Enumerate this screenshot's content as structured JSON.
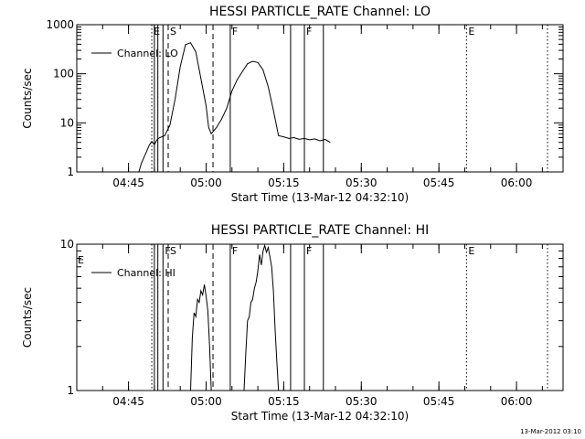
{
  "footer": {
    "timestamp": "13-Mar-2012 03:10"
  },
  "chart_data": [
    {
      "type": "line",
      "title": "HESSI PARTICLE_RATE Channel: LO",
      "xlabel": "Start Time (13-Mar-12 04:32:10)",
      "ylabel": "Counts/sec",
      "yscale": "log",
      "ylim": [
        1,
        1000
      ],
      "xlim": [
        "04:35",
        "06:09"
      ],
      "ytick_labels": [
        "1",
        "10",
        "100",
        "1000"
      ],
      "xtick_labels": [
        "04:45",
        "05:00",
        "05:15",
        "05:30",
        "05:45",
        "06:00"
      ],
      "legend": {
        "position": "top-left"
      },
      "series": [
        {
          "name": "Channel: LO",
          "x": [
            "04:47:00",
            "04:47:30",
            "04:48:00",
            "04:48:30",
            "04:49:00",
            "04:49:30",
            "04:50:00",
            "04:50:30",
            "04:51:00",
            "04:52:00",
            "04:53:00",
            "04:54:00",
            "04:55:00",
            "04:56:00",
            "04:57:00",
            "04:58:00",
            "04:59:00",
            "05:00:00",
            "05:00:30",
            "05:01:00",
            "05:02:00",
            "05:03:00",
            "05:04:00",
            "05:05:00",
            "05:06:00",
            "05:07:00",
            "05:08:00",
            "05:09:00",
            "05:10:00",
            "05:11:00",
            "05:12:00",
            "05:13:00",
            "05:14:00",
            "05:15:00",
            "05:16:00",
            "05:17:00",
            "05:18:00",
            "05:19:00",
            "05:20:00",
            "05:21:00",
            "05:22:00",
            "05:23:00",
            "05:24:00"
          ],
          "y": [
            1.0,
            1.5,
            2.0,
            2.6,
            3.5,
            4.2,
            3.6,
            4.5,
            5.0,
            5.5,
            9,
            30,
            140,
            390,
            430,
            280,
            80,
            22,
            8,
            6,
            8,
            12,
            20,
            45,
            75,
            110,
            160,
            180,
            170,
            120,
            55,
            18,
            5.5,
            5.2,
            4.8,
            5.0,
            4.6,
            4.8,
            4.5,
            4.7,
            4.3,
            4.6,
            4.0
          ]
        }
      ],
      "vertical_markers": [
        {
          "time": "04:49:30",
          "style": "dotted",
          "label": "E"
        },
        {
          "time": "04:50:00",
          "style": "solid",
          "label": ""
        },
        {
          "time": "04:50:40",
          "style": "solid",
          "label": ""
        },
        {
          "time": "04:51:40",
          "style": "solid",
          "label": ""
        },
        {
          "time": "04:52:40",
          "style": "dashed",
          "label": "S"
        },
        {
          "time": "05:01:20",
          "style": "dashed",
          "label": ""
        },
        {
          "time": "05:04:40",
          "style": "solid",
          "label": "F"
        },
        {
          "time": "05:16:20",
          "style": "solid",
          "label": ""
        },
        {
          "time": "05:19:00",
          "style": "solid",
          "label": "F"
        },
        {
          "time": "05:22:40",
          "style": "solid",
          "label": ""
        },
        {
          "time": "05:50:20",
          "style": "dotted",
          "label": "E"
        },
        {
          "time": "06:06:00",
          "style": "dotted",
          "label": ""
        }
      ]
    },
    {
      "type": "line",
      "title": "HESSI PARTICLE_RATE Channel: HI",
      "xlabel": "Start Time (13-Mar-12 04:32:10)",
      "ylabel": "Counts/sec",
      "yscale": "log",
      "ylim": [
        1,
        10
      ],
      "xlim": [
        "04:35",
        "06:09"
      ],
      "ytick_labels": [
        "1",
        "10"
      ],
      "xtick_labels": [
        "04:45",
        "05:00",
        "05:15",
        "05:30",
        "05:45",
        "06:00"
      ],
      "legend": {
        "position": "top-left"
      },
      "series": [
        {
          "name": "Channel: HI",
          "x": [
            "04:57:00",
            "04:57:20",
            "04:57:40",
            "04:58:00",
            "04:58:20",
            "04:58:40",
            "04:59:00",
            "04:59:20",
            "04:59:40",
            "05:00:00",
            "05:00:20",
            "05:00:40",
            "05:01:00"
          ],
          "y": [
            1.0,
            2.3,
            3.4,
            3.2,
            4.2,
            4.0,
            4.8,
            4.5,
            5.3,
            4.4,
            3.5,
            2.0,
            1.0
          ]
        },
        {
          "name": "",
          "x": [
            "05:07:20",
            "05:07:40",
            "05:08:00",
            "05:08:20",
            "05:08:40",
            "05:09:00",
            "05:09:20",
            "05:09:40",
            "05:10:00",
            "05:10:20",
            "05:10:40",
            "05:11:00",
            "05:11:20",
            "05:11:40",
            "05:12:00",
            "05:12:20",
            "05:12:40",
            "05:13:00",
            "05:13:20",
            "05:13:40",
            "05:14:00"
          ],
          "y": [
            1.0,
            1.8,
            3.0,
            3.2,
            4.0,
            4.2,
            5.0,
            5.5,
            6.6,
            8.5,
            7.2,
            8.9,
            9.8,
            8.8,
            9.5,
            8.2,
            7.0,
            4.8,
            2.6,
            1.6,
            1.0
          ]
        }
      ],
      "vertical_markers": [
        {
          "time": "04:49:30",
          "style": "dotted",
          "label": ""
        },
        {
          "time": "04:50:00",
          "style": "solid",
          "label": ""
        },
        {
          "time": "04:50:40",
          "style": "solid",
          "label": ""
        },
        {
          "time": "04:51:40",
          "style": "solid",
          "label": "F"
        },
        {
          "time": "04:52:40",
          "style": "dashed",
          "label": "S"
        },
        {
          "time": "05:01:20",
          "style": "dashed",
          "label": ""
        },
        {
          "time": "05:04:40",
          "style": "solid",
          "label": "F"
        },
        {
          "time": "05:16:20",
          "style": "solid",
          "label": ""
        },
        {
          "time": "05:19:00",
          "style": "solid",
          "label": "F"
        },
        {
          "time": "05:22:40",
          "style": "solid",
          "label": ""
        },
        {
          "time": "05:50:20",
          "style": "dotted",
          "label": "E"
        },
        {
          "time": "06:06:00",
          "style": "dotted",
          "label": ""
        }
      ],
      "corner_labels": [
        {
          "time": "04:35:00",
          "label": "E"
        }
      ]
    }
  ]
}
